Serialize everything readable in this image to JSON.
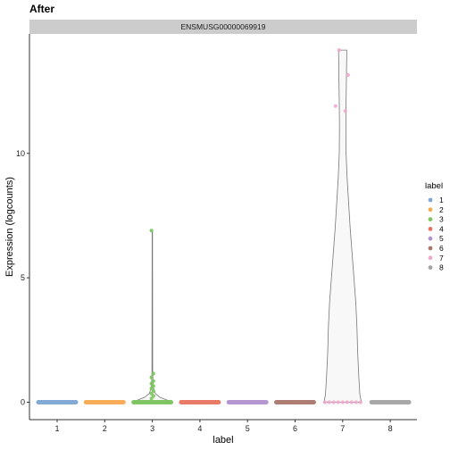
{
  "chart_data": {
    "type": "violin",
    "title": "After",
    "facet_label": "ENSMUSG00000069919",
    "xlabel": "label",
    "ylabel": "Expression (logcounts)",
    "ylim": [
      -0.7,
      14.8
    ],
    "y_ticks": [
      0,
      5,
      10
    ],
    "categories": [
      "1",
      "2",
      "3",
      "4",
      "5",
      "6",
      "7",
      "8"
    ],
    "grid": false,
    "legend": {
      "title": "label",
      "position": "right",
      "entries": [
        "1",
        "2",
        "3",
        "4",
        "5",
        "6",
        "7",
        "8"
      ]
    },
    "colors": {
      "1": "#7ca6d3",
      "2": "#f7a94f",
      "3": "#7bc55e",
      "4": "#e8735e",
      "5": "#b391cf",
      "6": "#a9776c",
      "7": "#f0a9cc",
      "8": "#a4a4a4"
    },
    "violins": [
      {
        "category": "7",
        "profile": [
          [
            0,
            0.5
          ],
          [
            0.3,
            0.46
          ],
          [
            1,
            0.43
          ],
          [
            2,
            0.4
          ],
          [
            3,
            0.38
          ],
          [
            4,
            0.35
          ],
          [
            5,
            0.3
          ],
          [
            6,
            0.25
          ],
          [
            7,
            0.2
          ],
          [
            8,
            0.16
          ],
          [
            9,
            0.12
          ],
          [
            10,
            0.09
          ],
          [
            11,
            0.085
          ],
          [
            12,
            0.09
          ],
          [
            13,
            0.1
          ],
          [
            14.15,
            0.11
          ]
        ]
      },
      {
        "category": "3",
        "profile": [
          [
            0,
            0.5
          ],
          [
            0.08,
            0.4
          ],
          [
            0.2,
            0.2
          ],
          [
            0.35,
            0.08
          ],
          [
            0.6,
            0.025
          ],
          [
            1.2,
            0.01
          ],
          [
            6.9,
            0.004
          ]
        ]
      }
    ],
    "points": [
      {
        "category": "3",
        "values": [
          6.9,
          1.15,
          1.0,
          0.85,
          0.75,
          0.65,
          0.55,
          0.45,
          0.35,
          0.25,
          0.15
        ]
      },
      {
        "category": "7",
        "values": [
          14.15,
          13.15,
          11.9,
          11.7
        ]
      },
      {
        "category": "7",
        "zeros_row": 9
      }
    ]
  }
}
